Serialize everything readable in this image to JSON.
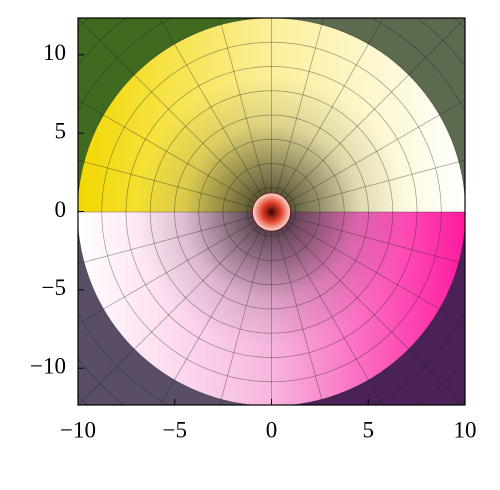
{
  "chart_data": {
    "type": "domain-coloring",
    "xlim": [
      -10,
      10
    ],
    "ylim": [
      -12.35,
      12.35
    ],
    "xticks": [
      {
        "value": -10,
        "label": "−10"
      },
      {
        "value": -5,
        "label": "−5"
      },
      0,
      5,
      10
    ],
    "yticks": [
      {
        "value": -10,
        "label": "−10"
      },
      {
        "value": -5,
        "label": "−5"
      },
      0,
      5,
      10
    ]
  }
}
